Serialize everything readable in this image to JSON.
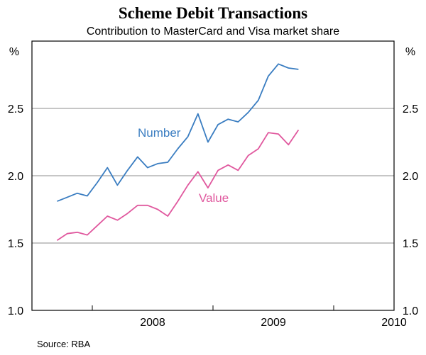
{
  "chart_data": {
    "type": "line",
    "title": "Scheme Debit Transactions",
    "subtitle": "Contribution to MasterCard and Visa market share",
    "ylabel_left": "%",
    "ylabel_right": "%",
    "ylim": [
      1.0,
      3.0
    ],
    "yticks": [
      "1.0",
      "1.5",
      "2.0",
      "2.5"
    ],
    "xlim": [
      2007.5,
      2010.5
    ],
    "xticks": [
      "2008",
      "2009",
      "2010"
    ],
    "grid": true,
    "legend": "inline labels",
    "series": [
      {
        "name": "Number",
        "color": "#3a7dc1",
        "x": [
          "2007-09",
          "2007-10",
          "2007-11",
          "2007-12",
          "2008-01",
          "2008-02",
          "2008-03",
          "2008-04",
          "2008-05",
          "2008-06",
          "2008-07",
          "2008-08",
          "2008-09",
          "2008-10",
          "2008-11",
          "2008-12",
          "2009-01",
          "2009-02",
          "2009-03",
          "2009-04",
          "2009-05",
          "2009-06",
          "2009-07",
          "2009-08",
          "2009-09",
          "2009-10"
        ],
        "values": [
          1.81,
          1.84,
          1.87,
          1.85,
          1.95,
          2.06,
          1.93,
          2.04,
          2.14,
          2.06,
          2.09,
          2.1,
          2.2,
          2.29,
          2.46,
          2.25,
          2.38,
          2.42,
          2.4,
          2.47,
          2.56,
          2.74,
          2.83,
          2.8,
          2.79,
          null
        ]
      },
      {
        "name": "Value",
        "color": "#e0589e",
        "x": [
          "2007-09",
          "2007-10",
          "2007-11",
          "2007-12",
          "2008-01",
          "2008-02",
          "2008-03",
          "2008-04",
          "2008-05",
          "2008-06",
          "2008-07",
          "2008-08",
          "2008-09",
          "2008-10",
          "2008-11",
          "2008-12",
          "2009-01",
          "2009-02",
          "2009-03",
          "2009-04",
          "2009-05",
          "2009-06",
          "2009-07",
          "2009-08",
          "2009-09"
        ],
        "values": [
          1.52,
          1.57,
          1.58,
          1.56,
          1.63,
          1.7,
          1.67,
          1.72,
          1.78,
          1.78,
          1.75,
          1.7,
          1.81,
          1.93,
          2.03,
          1.91,
          2.04,
          2.08,
          2.04,
          2.15,
          2.2,
          2.32,
          2.31,
          2.23,
          2.34
        ]
      }
    ]
  },
  "source": "Source: RBA"
}
